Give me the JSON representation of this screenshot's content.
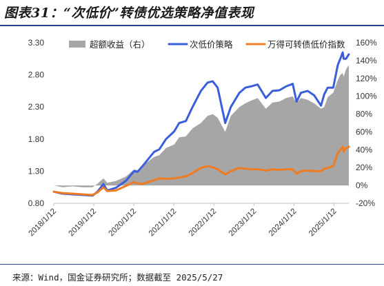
{
  "title": "图表31：“次低价”转债优选策略净值表现",
  "source": "来源：Wind，国金证券研究所；数据截至 2025/5/27",
  "colors": {
    "excess": "#a6a6a6",
    "strategy": "#3a5ddb",
    "index": "#f07c22",
    "title_rule": "#2d3e8c"
  },
  "chart_data": {
    "type": "line",
    "title": "",
    "xlabel": "",
    "ylabel": "",
    "ylabel_right": "",
    "ylim": [
      0.8,
      3.3
    ],
    "y_ticks": [
      "0.80",
      "1.30",
      "1.80",
      "2.30",
      "2.80",
      "3.30"
    ],
    "ylim_right": [
      -0.2,
      1.6
    ],
    "y_ticks_right": [
      "-20%",
      "0%",
      "20%",
      "40%",
      "60%",
      "80%",
      "100%",
      "120%",
      "140%",
      "160%"
    ],
    "x_ticks": [
      "2018/1/12",
      "2019/1/12",
      "2020/1/12",
      "2021/1/12",
      "2022/1/12",
      "2023/1/12",
      "2024/1/12",
      "2025/1/12"
    ],
    "xlim": [
      "2018-01-12",
      "2025-05-27"
    ],
    "grid": false,
    "legend_position": "top",
    "x": [
      "2018-01-12",
      "2018-04-01",
      "2018-07-01",
      "2018-10-01",
      "2019-01-01",
      "2019-02-15",
      "2019-04-10",
      "2019-05-15",
      "2019-08-01",
      "2019-11-01",
      "2020-01-15",
      "2020-02-15",
      "2020-04-01",
      "2020-07-15",
      "2020-09-01",
      "2020-11-01",
      "2021-01-15",
      "2021-03-01",
      "2021-05-01",
      "2021-07-01",
      "2021-09-15",
      "2021-11-15",
      "2022-01-01",
      "2022-02-15",
      "2022-04-25",
      "2022-06-15",
      "2022-09-01",
      "2022-10-25",
      "2022-12-15",
      "2023-02-15",
      "2023-05-01",
      "2023-07-01",
      "2023-09-01",
      "2023-11-01",
      "2024-01-01",
      "2024-02-05",
      "2024-03-15",
      "2024-05-15",
      "2024-07-15",
      "2024-09-15",
      "2024-10-15",
      "2024-11-15",
      "2025-01-05",
      "2025-02-15",
      "2025-03-10",
      "2025-04-01",
      "2025-04-10",
      "2025-05-01",
      "2025-05-27"
    ],
    "series": [
      {
        "name": "超额收益（右）",
        "axis": "right",
        "style": "area",
        "values": [
          0.0,
          -0.02,
          -0.01,
          -0.02,
          -0.02,
          0.02,
          0.08,
          0.03,
          0.05,
          0.1,
          0.18,
          0.17,
          0.22,
          0.32,
          0.34,
          0.42,
          0.46,
          0.54,
          0.55,
          0.64,
          0.7,
          0.78,
          0.8,
          0.76,
          0.6,
          0.78,
          0.88,
          0.92,
          0.95,
          0.98,
          0.86,
          0.93,
          0.94,
          0.98,
          1.0,
          0.92,
          0.98,
          0.96,
          0.92,
          0.86,
          0.88,
          0.99,
          1.04,
          1.18,
          1.24,
          1.26,
          1.22,
          1.3,
          1.35
        ]
      },
      {
        "name": "次低价策略",
        "axis": "left",
        "style": "line",
        "values": [
          0.98,
          0.95,
          0.94,
          0.93,
          0.92,
          0.98,
          1.1,
          1.0,
          1.04,
          1.15,
          1.3,
          1.29,
          1.38,
          1.6,
          1.64,
          1.8,
          1.92,
          2.05,
          2.08,
          2.3,
          2.55,
          2.68,
          2.7,
          2.6,
          2.05,
          2.3,
          2.52,
          2.6,
          2.62,
          2.65,
          2.44,
          2.55,
          2.56,
          2.62,
          2.66,
          2.38,
          2.52,
          2.55,
          2.48,
          2.32,
          2.5,
          2.6,
          2.6,
          2.95,
          3.05,
          3.15,
          3.05,
          3.05,
          3.12
        ]
      },
      {
        "name": "万得可转债低价指数",
        "axis": "left",
        "style": "line",
        "values": [
          0.98,
          0.96,
          0.95,
          0.94,
          0.93,
          0.97,
          1.05,
          0.99,
          1.0,
          1.07,
          1.13,
          1.11,
          1.1,
          1.16,
          1.19,
          1.18,
          1.19,
          1.2,
          1.22,
          1.27,
          1.35,
          1.38,
          1.36,
          1.33,
          1.25,
          1.3,
          1.35,
          1.34,
          1.33,
          1.33,
          1.31,
          1.33,
          1.32,
          1.33,
          1.33,
          1.26,
          1.3,
          1.31,
          1.3,
          1.3,
          1.34,
          1.35,
          1.38,
          1.58,
          1.63,
          1.68,
          1.6,
          1.66,
          1.68
        ]
      }
    ]
  }
}
